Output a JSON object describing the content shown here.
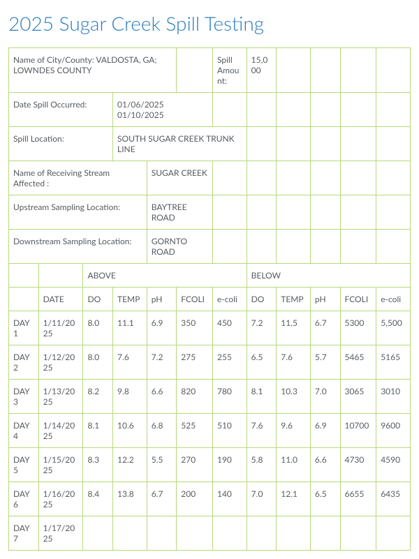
{
  "title": "2025 Sugar Creek Spill Testing",
  "header": {
    "city_county_label": "Name of City/County:",
    "city_county_value": "VALDOSTA, GA; LOWNDES COUNTY",
    "spill_amount_label": "Spill Amount:",
    "spill_amount_value": "15,000",
    "date_spill_label": "Date Spill Occurred:",
    "date_spill_value": "01/06/2025 01/10/2025",
    "spill_location_label": "Spill Location:",
    "spill_location_value": "SOUTH SUGAR CREEK TRUNK LINE",
    "receiving_stream_label": "Name of Receiving Stream Affected :",
    "receiving_stream_value": "SUGAR CREEK",
    "upstream_label": "Upstream Sampling Location:",
    "upstream_value": "BAYTREE ROAD",
    "downstream_label": "Downstream Sampling Location:",
    "downstream_value": "GORNTO ROAD"
  },
  "sections": {
    "above": "ABOVE",
    "below": "BELOW"
  },
  "columns": {
    "date": "DATE",
    "do": "DO",
    "temp": "TEMP",
    "ph": "pH",
    "fcoli": "FCOLI",
    "ecoli": "e-coli"
  },
  "rows": [
    {
      "day": "DAY 1",
      "date": "1/11/2025",
      "a_do": "8.0",
      "a_temp": "11.1",
      "a_ph": "6.9",
      "a_fcoli": "350",
      "a_ecoli": "450",
      "b_do": "7.2",
      "b_temp": "11.5",
      "b_ph": "6.7",
      "b_fcoli": "5300",
      "b_ecoli": "5,500"
    },
    {
      "day": "DAY 2",
      "date": "1/12/2025",
      "a_do": "8.0",
      "a_temp": "7.6",
      "a_ph": "7.2",
      "a_fcoli": "275",
      "a_ecoli": "255",
      "b_do": "6.5",
      "b_temp": "7.6",
      "b_ph": "5.7",
      "b_fcoli": "5465",
      "b_ecoli": "5165"
    },
    {
      "day": "DAY 3",
      "date": "1/13/2025",
      "a_do": "8.2",
      "a_temp": "9.8",
      "a_ph": "6.6",
      "a_fcoli": "820",
      "a_ecoli": "780",
      "b_do": "8.1",
      "b_temp": "10.3",
      "b_ph": "7.0",
      "b_fcoli": "3065",
      "b_ecoli": "3010"
    },
    {
      "day": "DAY 4",
      "date": "1/14/2025",
      "a_do": "8.1",
      "a_temp": "10.6",
      "a_ph": "6.8",
      "a_fcoli": "525",
      "a_ecoli": "510",
      "b_do": "7.6",
      "b_temp": "9.6",
      "b_ph": "6.9",
      "b_fcoli": "10700",
      "b_ecoli": "9600"
    },
    {
      "day": "DAY 5",
      "date": "1/15/2025",
      "a_do": "8.3",
      "a_temp": "12.2",
      "a_ph": "5.5",
      "a_fcoli": "270",
      "a_ecoli": "190",
      "b_do": "5.8",
      "b_temp": "11.0",
      "b_ph": "6.6",
      "b_fcoli": "4730",
      "b_ecoli": "4590"
    },
    {
      "day": "DAY 6",
      "date": "1/16/2025",
      "a_do": "8.4",
      "a_temp": "13.8",
      "a_ph": "6.7",
      "a_fcoli": "200",
      "a_ecoli": "140",
      "b_do": "7.0",
      "b_temp": "12.1",
      "b_ph": "6.5",
      "b_fcoli": "6655",
      "b_ecoli": "6435"
    },
    {
      "day": "DAY 7",
      "date": "1/17/2025",
      "a_do": "",
      "a_temp": "",
      "a_ph": "",
      "a_fcoli": "",
      "a_ecoli": "",
      "b_do": "",
      "b_temp": "",
      "b_ph": "",
      "b_fcoli": "",
      "b_ecoli": ""
    }
  ],
  "colors": {
    "border": "#b7d97a",
    "heading": "#2a7cbf",
    "text": "#555b60",
    "background": "#ffffff"
  }
}
